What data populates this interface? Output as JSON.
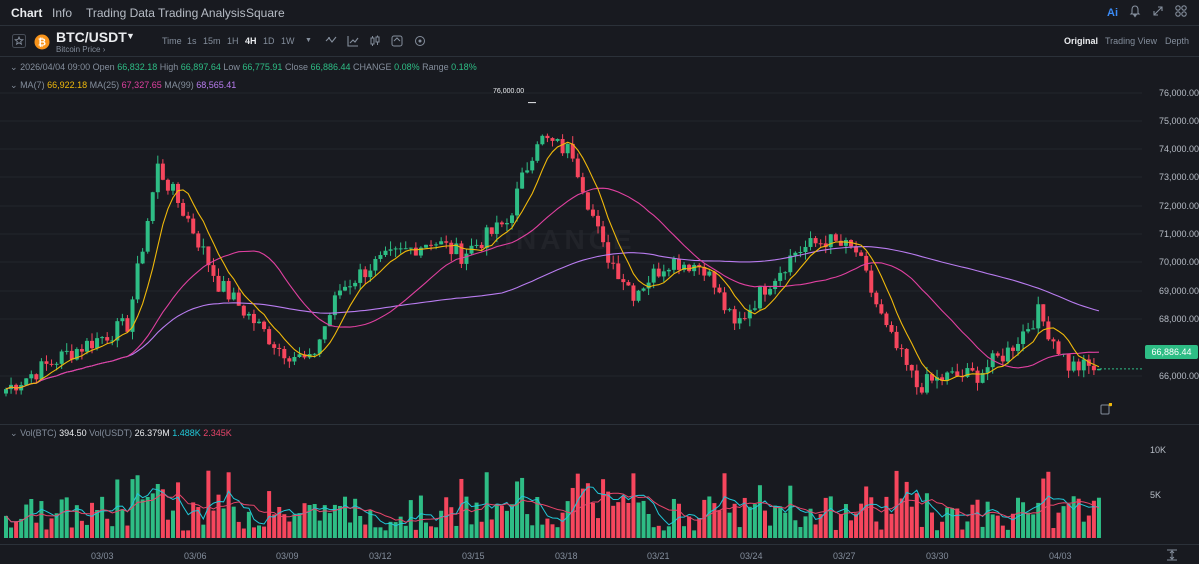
{
  "nav": {
    "items": [
      "Chart",
      "Info",
      "Trading Data",
      "Trading Analysis",
      "Square"
    ],
    "ai_label": "Ai"
  },
  "header": {
    "pair": "BTC/USDT",
    "subtitle": "Bitcoin Price",
    "timeframe_label": "Time",
    "timeframes": [
      "1s",
      "15m",
      "1H",
      "4H",
      "1D",
      "1W"
    ],
    "active_timeframe": "4H",
    "views": [
      "Original",
      "Trading View",
      "Depth"
    ],
    "active_view": "Original"
  },
  "ohlc": {
    "date": "2026/04/04 09:00",
    "open_label": "Open",
    "open": "66,832.18",
    "high_label": "High",
    "high": "66,897.64",
    "low_label": "Low",
    "low": "66,775.91",
    "close_label": "Close",
    "close": "66,886.44",
    "change_label": "CHANGE",
    "change": "0.08%",
    "range_label": "Range",
    "range": "0.18%"
  },
  "ma": {
    "ma7_label": "MA(7)",
    "ma7": "66,922.18",
    "ma25_label": "MA(25)",
    "ma25": "67,327.65",
    "ma99_label": "MA(99)",
    "ma99": "68,565.41"
  },
  "volume_info": {
    "btc_label": "Vol(BTC)",
    "btc": "394.50",
    "usdt_label": "Vol(USDT)",
    "usdt": "26.379M",
    "ma1": "1.488K",
    "ma2": "2.345K"
  },
  "price_axis": [
    "76,000.00",
    "75,000.00",
    "74,000.00",
    "73,000.00",
    "72,000.00",
    "71,000.00",
    "70,000.00",
    "69,000.00",
    "68,000.00",
    "66,000.00"
  ],
  "current_price": "66,886.44",
  "high_marker": "76,000.00",
  "volume_axis": [
    "10K",
    "5K"
  ],
  "date_axis": [
    "03/03",
    "03/06",
    "03/09",
    "03/12",
    "03/15",
    "03/18",
    "03/21",
    "03/24",
    "03/27",
    "03/30",
    "04/03"
  ],
  "watermark": "BINANCE",
  "colors": {
    "up": "#2ebd85",
    "down": "#f6465d",
    "ma7": "#f0b90b",
    "ma25": "#e040a0",
    "ma99": "#b97cf0",
    "vol_ma1": "#21c8d8",
    "vol_ma2": "#e8456a"
  },
  "chart_data": {
    "type": "candlestick",
    "x_range": [
      "03/01",
      "04/04"
    ],
    "ylim": [
      65000,
      76500
    ],
    "volume_ylim": [
      0,
      12000
    ],
    "anchors": [
      {
        "t": 0,
        "p": 66200
      },
      {
        "t": 12,
        "p": 67400
      },
      {
        "t": 24,
        "p": 68400
      },
      {
        "t": 30,
        "p": 73800
      },
      {
        "t": 36,
        "p": 72000
      },
      {
        "t": 42,
        "p": 69800
      },
      {
        "t": 54,
        "p": 67600
      },
      {
        "t": 60,
        "p": 67100
      },
      {
        "t": 66,
        "p": 69600
      },
      {
        "t": 72,
        "p": 70400
      },
      {
        "t": 84,
        "p": 71300
      },
      {
        "t": 90,
        "p": 70800
      },
      {
        "t": 99,
        "p": 71900
      },
      {
        "t": 105,
        "p": 74800
      },
      {
        "t": 112,
        "p": 74300
      },
      {
        "t": 118,
        "p": 71000
      },
      {
        "t": 124,
        "p": 69500
      },
      {
        "t": 131,
        "p": 70600
      },
      {
        "t": 138,
        "p": 70400
      },
      {
        "t": 144,
        "p": 68300
      },
      {
        "t": 150,
        "p": 69700
      },
      {
        "t": 156,
        "p": 70900
      },
      {
        "t": 162,
        "p": 71300
      },
      {
        "t": 168,
        "p": 70900
      },
      {
        "t": 174,
        "p": 68200
      },
      {
        "t": 180,
        "p": 66300
      },
      {
        "t": 186,
        "p": 66600
      },
      {
        "t": 192,
        "p": 66700
      },
      {
        "t": 198,
        "p": 67500
      },
      {
        "t": 204,
        "p": 68800
      },
      {
        "t": 210,
        "p": 67000
      },
      {
        "t": 216,
        "p": 66890
      }
    ]
  }
}
